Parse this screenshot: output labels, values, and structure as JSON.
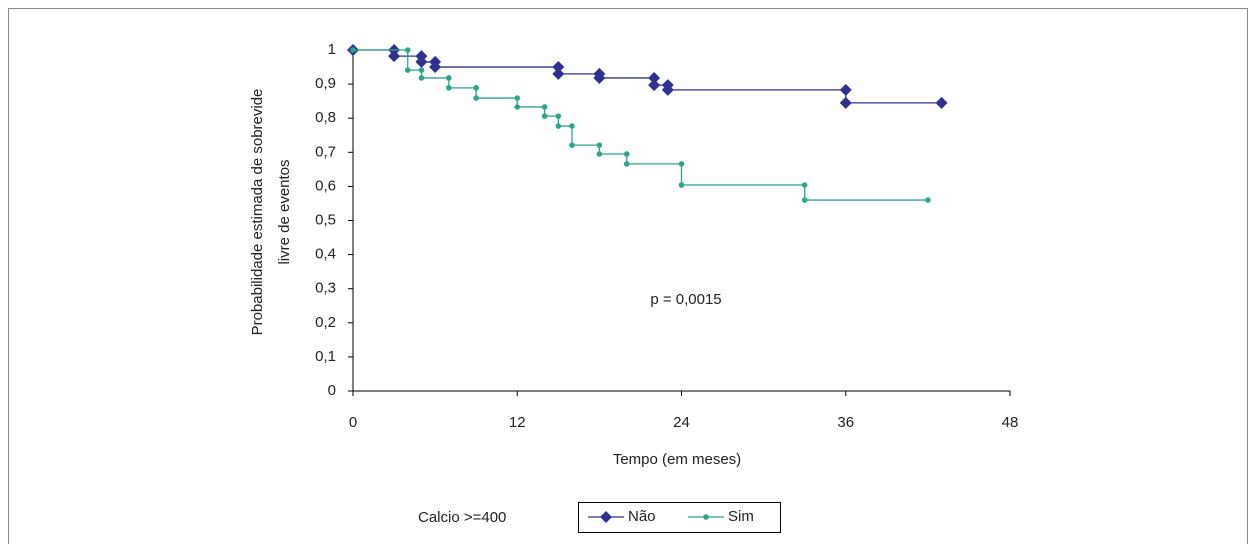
{
  "chart_data": {
    "type": "step-line",
    "y_label": [
      "Probabilidade estimada de sobrevide",
      "livre de eventos"
    ],
    "x_label": "Tempo (em meses)",
    "annotation": "p = 0,0015",
    "legend_title": "Calcio >=400",
    "xlim": [
      0,
      48
    ],
    "xticks": [
      0,
      12,
      24,
      36,
      48
    ],
    "ylim": [
      0,
      1
    ],
    "yticks": [
      0,
      {
        "value": 0.1,
        "label": "0,1"
      },
      {
        "value": 0.2,
        "label": "0,2"
      },
      {
        "value": 0.3,
        "label": "0,3"
      },
      {
        "value": 0.4,
        "label": "0,4"
      },
      {
        "value": 0.5,
        "label": "0,5"
      },
      {
        "value": 0.6,
        "label": "0,6"
      },
      {
        "value": 0.7,
        "label": "0,7"
      },
      {
        "value": 0.8,
        "label": "0,8"
      },
      {
        "value": 0.9,
        "label": "0,9"
      },
      1
    ],
    "grid": false,
    "series": [
      {
        "name": "Não",
        "color": "#2e3192",
        "marker": "diamond",
        "x": [
          0,
          3,
          3,
          5,
          5,
          6,
          6,
          15,
          15,
          18,
          18,
          22,
          22,
          23,
          23,
          36,
          36,
          43
        ],
        "values": [
          1,
          1,
          0.982,
          0.982,
          0.965,
          0.965,
          0.95,
          0.95,
          0.93,
          0.93,
          0.918,
          0.918,
          0.897,
          0.897,
          0.883,
          0.883,
          0.845,
          0.845
        ]
      },
      {
        "name": "Sim",
        "color": "#2ca58d",
        "marker": "circle",
        "x": [
          0,
          4,
          4,
          5,
          5,
          7,
          7,
          9,
          9,
          12,
          12,
          14,
          14,
          15,
          15,
          16,
          16,
          18,
          18,
          20,
          20,
          24,
          24,
          33,
          33,
          42
        ],
        "values": [
          1,
          1,
          0.941,
          0.941,
          0.918,
          0.918,
          0.889,
          0.889,
          0.859,
          0.859,
          0.833,
          0.833,
          0.806,
          0.806,
          0.777,
          0.777,
          0.721,
          0.721,
          0.695,
          0.695,
          0.666,
          0.666,
          0.604,
          0.604,
          0.56,
          0.56
        ]
      }
    ]
  }
}
